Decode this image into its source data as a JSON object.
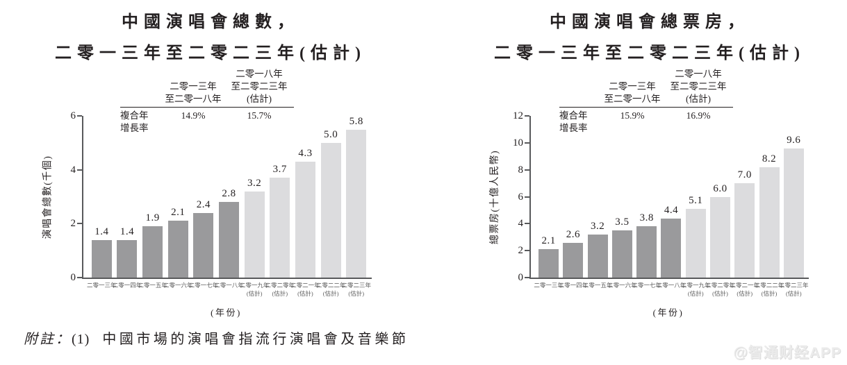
{
  "page": {
    "note_prefix": "附註：",
    "note_ref": "(1)",
    "note_text": "中國市場的演唱會指流行演唱會及音樂節",
    "watermark": "@智通财经APP"
  },
  "colors": {
    "bar_actual": "#9a9a9c",
    "bar_estimate": "#dcdcde",
    "axis": "#58595b",
    "text": "#231f20"
  },
  "chart_data": [
    {
      "type": "bar",
      "title_line1": "中國演唱會總數，",
      "title_line2": "二零一三年至二零二三年(估計)",
      "ylabel": "演唱會總數(千個)",
      "xlabel": "(年份)",
      "ylim": [
        0,
        6
      ],
      "yticks": [
        0,
        2,
        4,
        6
      ],
      "categories": [
        "二零一三年",
        "二零一四年",
        "二零一五年",
        "二零一六年",
        "二零一七年",
        "二零一八年",
        "二零一九年",
        "二零二零年",
        "二零二一年",
        "二零二二年",
        "二零二三年"
      ],
      "estimate_start_index": 6,
      "estimate_label": "(估計)",
      "values": [
        1.4,
        1.4,
        1.9,
        2.1,
        2.4,
        2.8,
        3.2,
        3.7,
        4.3,
        5.0,
        5.8
      ],
      "legend_position": "none",
      "grid": false,
      "cagr": {
        "row_label_line1": "複合年",
        "row_label_line2": "增長率",
        "period1_line1": "二零一三年",
        "period1_line2": "至二零一八年",
        "period1_value": "14.9%",
        "period2_line1": "二零一八年",
        "period2_line2": "至二零二三年",
        "period2_line3": "(估計)",
        "period2_value": "15.7%"
      }
    },
    {
      "type": "bar",
      "title_line1": "中國演唱會總票房，",
      "title_line2": "二零一三年至二零二三年(估計)",
      "ylabel": "總票房(十億人民幣)",
      "xlabel": "(年份)",
      "ylim": [
        0,
        12
      ],
      "yticks": [
        0,
        2,
        4,
        6,
        8,
        10,
        12
      ],
      "categories": [
        "二零一三年",
        "二零一四年",
        "二零一五年",
        "二零一六年",
        "二零一七年",
        "二零一八年",
        "二零一九年",
        "二零二零年",
        "二零二一年",
        "二零二二年",
        "二零二三年"
      ],
      "estimate_start_index": 6,
      "estimate_label": "(估計)",
      "values": [
        2.1,
        2.6,
        3.2,
        3.5,
        3.8,
        4.4,
        5.1,
        6.0,
        7.0,
        8.2,
        9.6
      ],
      "legend_position": "none",
      "grid": false,
      "cagr": {
        "row_label_line1": "複合年",
        "row_label_line2": "增長率",
        "period1_line1": "二零一三年",
        "period1_line2": "至二零一八年",
        "period1_value": "15.9%",
        "period2_line1": "二零一八年",
        "period2_line2": "至二零二三年",
        "period2_line3": "(估計)",
        "period2_value": "16.9%"
      }
    }
  ]
}
